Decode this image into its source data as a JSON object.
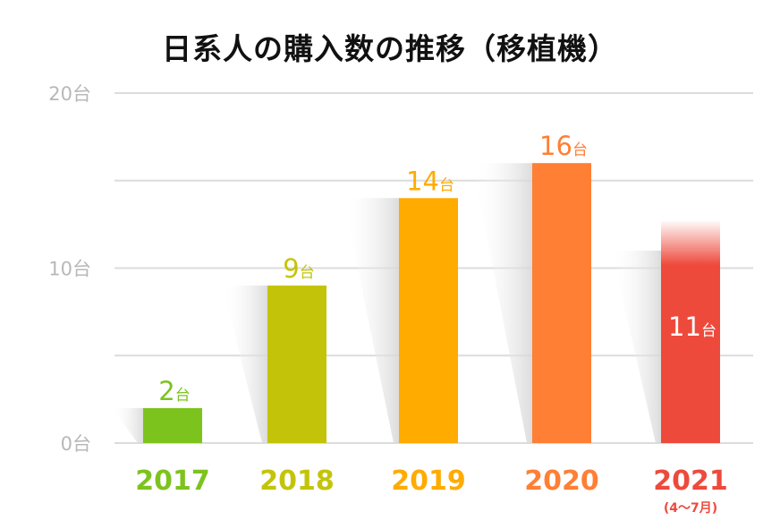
{
  "title": "日系人の購入数の推移（移植機）",
  "chart_data": {
    "type": "bar",
    "title": "日系人の購入数の推移（移植機）",
    "unit": "台",
    "categories": [
      "2017",
      "2018",
      "2019",
      "2020",
      "2021"
    ],
    "category_notes": [
      "",
      "",
      "",
      "",
      "(4〜7月)"
    ],
    "values": [
      2,
      9,
      14,
      16,
      11
    ],
    "value_labels": [
      "2台",
      "9台",
      "14台",
      "16台",
      "11台"
    ],
    "colors": [
      "#7dc31e",
      "#c3c40a",
      "#ffab00",
      "#ff7f35",
      "#ee4a3c"
    ],
    "ylim": [
      0,
      20
    ],
    "yticks": [
      0,
      10,
      20
    ],
    "ytick_labels": [
      "0台",
      "10台",
      "20台"
    ],
    "grid_values": [
      0,
      5,
      10,
      15,
      20
    ],
    "grid": true,
    "xlabel": "",
    "ylabel": ""
  }
}
